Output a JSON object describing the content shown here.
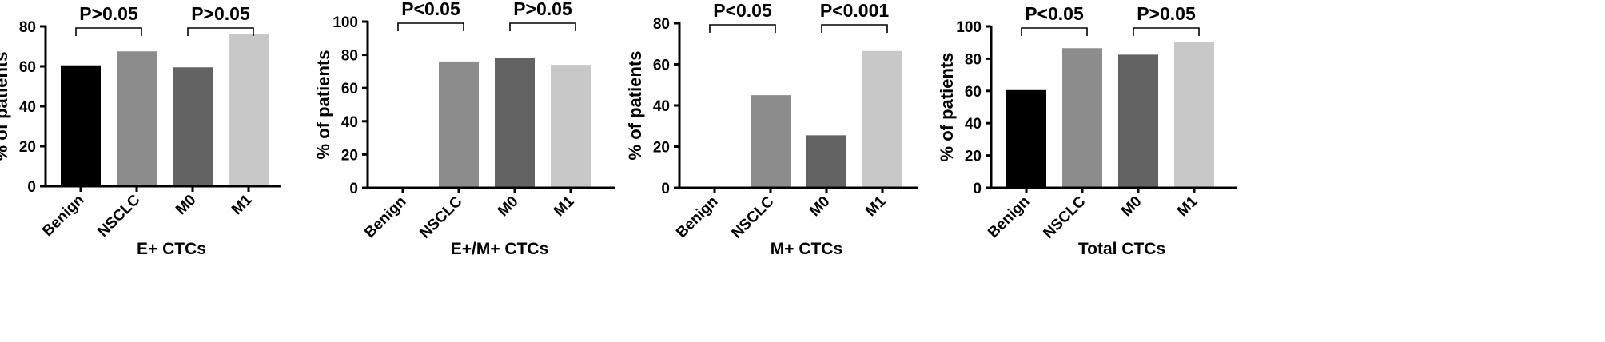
{
  "chart_data": [
    {
      "type": "bar",
      "title": "",
      "xlabel": "E+ CTCs",
      "ylabel": "% of patients",
      "ylim": [
        0,
        80
      ],
      "yticks": [
        0,
        20,
        40,
        60,
        80
      ],
      "categories": [
        "Benign",
        "NSCLC",
        "M0",
        "M1"
      ],
      "values": [
        60.5,
        67.5,
        59.5,
        76
      ],
      "colors": [
        "#000000",
        "#8c8c8c",
        "#636363",
        "#c8c8c8"
      ],
      "comparisons": [
        {
          "from": 0,
          "to": 1,
          "label": "P>0.05"
        },
        {
          "from": 2,
          "to": 3,
          "label": "P>0.05"
        }
      ]
    },
    {
      "type": "bar",
      "title": "",
      "xlabel": "E+/M+ CTCs",
      "ylabel": "% of patients",
      "ylim": [
        0,
        100
      ],
      "yticks": [
        0,
        20,
        40,
        60,
        80,
        100
      ],
      "categories": [
        "Benign",
        "NSCLC",
        "M0",
        "M1"
      ],
      "values": [
        0,
        76,
        78,
        74
      ],
      "colors": [
        "#000000",
        "#8c8c8c",
        "#636363",
        "#c8c8c8"
      ],
      "comparisons": [
        {
          "from": 0,
          "to": 1,
          "label": "P<0.05"
        },
        {
          "from": 2,
          "to": 3,
          "label": "P>0.05"
        }
      ]
    },
    {
      "type": "bar",
      "title": "",
      "xlabel": "M+ CTCs",
      "ylabel": "% of patients",
      "ylim": [
        0,
        80
      ],
      "yticks": [
        0,
        20,
        40,
        60,
        80
      ],
      "categories": [
        "Benign",
        "NSCLC",
        "M0",
        "M1"
      ],
      "values": [
        0,
        45,
        25.5,
        66.5
      ],
      "colors": [
        "#000000",
        "#8c8c8c",
        "#636363",
        "#c8c8c8"
      ],
      "comparisons": [
        {
          "from": 0,
          "to": 1,
          "label": "P<0.05"
        },
        {
          "from": 2,
          "to": 3,
          "label": "P<0.001"
        }
      ]
    },
    {
      "type": "bar",
      "title": "",
      "xlabel": "Total CTCs",
      "ylabel": "% of patients",
      "ylim": [
        0,
        100
      ],
      "yticks": [
        0,
        20,
        40,
        60,
        80,
        100
      ],
      "categories": [
        "Benign",
        "NSCLC",
        "M0",
        "M1"
      ],
      "values": [
        60.5,
        86.5,
        82.5,
        90.5
      ],
      "colors": [
        "#000000",
        "#8c8c8c",
        "#636363",
        "#c8c8c8"
      ],
      "comparisons": [
        {
          "from": 0,
          "to": 1,
          "label": "P<0.05"
        },
        {
          "from": 2,
          "to": 3,
          "label": "P>0.05"
        }
      ]
    }
  ]
}
